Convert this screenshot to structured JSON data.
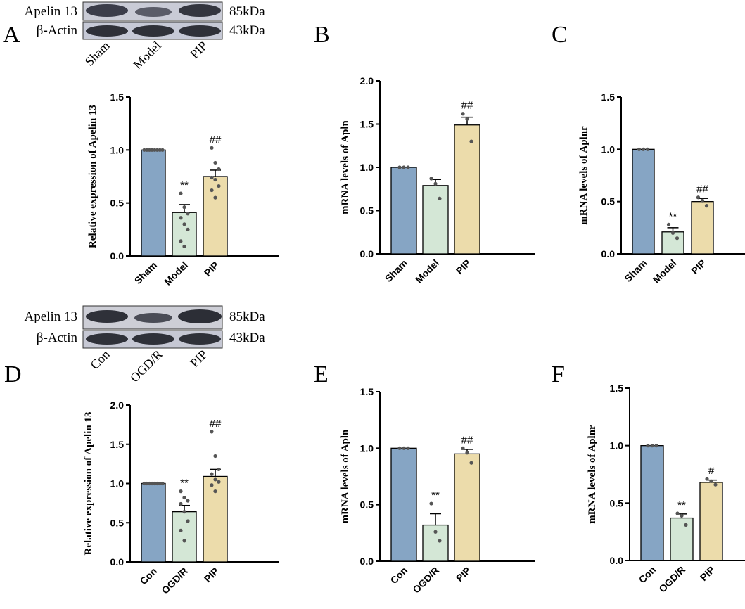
{
  "panels": {
    "A": "A",
    "B": "B",
    "C": "C",
    "D": "D",
    "E": "E",
    "F": "F"
  },
  "blots": [
    {
      "rows": [
        {
          "label": "Apelin 13",
          "size": "85kDa"
        },
        {
          "label": "β-Actin",
          "size": "43kDa"
        }
      ],
      "lanes": [
        "Sham",
        "Model",
        "PIP"
      ]
    },
    {
      "rows": [
        {
          "label": "Apelin 13",
          "size": "85kDa"
        },
        {
          "label": "β-Actin",
          "size": "43kDa"
        }
      ],
      "lanes": [
        "Con",
        "OGD/R",
        "PIP"
      ]
    }
  ],
  "colors": {
    "bar1": "#86a5c4",
    "bar2": "#d4e7d6",
    "bar3": "#ecdcab",
    "point": "#555555"
  },
  "chart_data": [
    {
      "panel": "A",
      "type": "bar",
      "categories": [
        "Sham",
        "Model",
        "PIP"
      ],
      "values": [
        1.0,
        0.41,
        0.75
      ],
      "errors": [
        0.0,
        0.075,
        0.06
      ],
      "points": [
        [
          1,
          1,
          1,
          1,
          1,
          1,
          1,
          1
        ],
        [
          0.59,
          0.46,
          0.4,
          0.36,
          0.3,
          0.25,
          0.14,
          0.09
        ],
        [
          1.02,
          0.88,
          0.82,
          0.74,
          0.72,
          0.66,
          0.62,
          0.55
        ]
      ],
      "significance": [
        "",
        "**",
        "##"
      ],
      "ylabel": "Relative expression of Apelin 13",
      "ylim": [
        0,
        1.5
      ],
      "ticks": [
        "0.0",
        "0.5",
        "1.0",
        "1.5"
      ],
      "tickvals": [
        0,
        0.5,
        1.0,
        1.5
      ]
    },
    {
      "panel": "B",
      "type": "bar",
      "categories": [
        "Sham",
        "Model",
        "PIP"
      ],
      "values": [
        1.0,
        0.79,
        1.49
      ],
      "errors": [
        0.0,
        0.07,
        0.09
      ],
      "points": [
        [
          1,
          1,
          1
        ],
        [
          0.87,
          0.81,
          0.64
        ],
        [
          1.62,
          1.56,
          1.3
        ]
      ],
      "significance": [
        "",
        "",
        "##"
      ],
      "ylabel": "mRNA levels of Apln",
      "ylim": [
        0,
        2.0
      ],
      "ticks": [
        "0.0",
        "0.5",
        "1.0",
        "1.5",
        "2.0"
      ],
      "tickvals": [
        0,
        0.5,
        1.0,
        1.5,
        2.0
      ]
    },
    {
      "panel": "C",
      "type": "bar",
      "categories": [
        "Sham",
        "Model",
        "PIP"
      ],
      "values": [
        1.0,
        0.21,
        0.5
      ],
      "errors": [
        0.0,
        0.04,
        0.03
      ],
      "points": [
        [
          1,
          1,
          1
        ],
        [
          0.28,
          0.2,
          0.15
        ],
        [
          0.54,
          0.51,
          0.46
        ]
      ],
      "significance": [
        "",
        "**",
        "##"
      ],
      "ylabel": "mRNA levels of Aplnr",
      "ylim": [
        0,
        1.5
      ],
      "ticks": [
        "0.0",
        "0.5",
        "1.0",
        "1.5"
      ],
      "tickvals": [
        0,
        0.5,
        1.0,
        1.5
      ]
    },
    {
      "panel": "D",
      "type": "bar",
      "categories": [
        "Con",
        "OGD/R",
        "PIP"
      ],
      "values": [
        1.0,
        0.64,
        1.09
      ],
      "errors": [
        0.0,
        0.08,
        0.09
      ],
      "points": [
        [
          1,
          1,
          1,
          1,
          1,
          1,
          1,
          1
        ],
        [
          0.9,
          0.82,
          0.78,
          0.74,
          0.64,
          0.52,
          0.4,
          0.27
        ],
        [
          1.66,
          1.35,
          1.18,
          1.12,
          1.05,
          1.02,
          0.98,
          0.9
        ]
      ],
      "significance": [
        "",
        "**",
        "##"
      ],
      "ylabel": "Relative expression of Apelin 13",
      "ylim": [
        0,
        2.0
      ],
      "ticks": [
        "0.0",
        "0.5",
        "1.0",
        "1.5",
        "2.0"
      ],
      "tickvals": [
        0,
        0.5,
        1.0,
        1.5,
        2.0
      ]
    },
    {
      "panel": "E",
      "type": "bar",
      "categories": [
        "Con",
        "OGD/R",
        "PIP"
      ],
      "values": [
        1.0,
        0.32,
        0.95
      ],
      "errors": [
        0.0,
        0.1,
        0.04
      ],
      "points": [
        [
          1,
          1,
          1
        ],
        [
          0.51,
          0.26,
          0.18
        ],
        [
          1.0,
          0.96,
          0.87
        ]
      ],
      "significance": [
        "",
        "**",
        "##"
      ],
      "ylabel": "mRNA levels of Apln",
      "ylim": [
        0,
        1.5
      ],
      "ticks": [
        "0.0",
        "0.5",
        "1.0",
        "1.5"
      ],
      "tickvals": [
        0,
        0.5,
        1.0,
        1.5
      ]
    },
    {
      "panel": "F",
      "type": "bar",
      "categories": [
        "Con",
        "OGD/R",
        "PIP"
      ],
      "values": [
        1.0,
        0.37,
        0.68
      ],
      "errors": [
        0.0,
        0.035,
        0.02
      ],
      "points": [
        [
          1,
          1,
          1
        ],
        [
          0.41,
          0.39,
          0.31
        ],
        [
          0.71,
          0.69,
          0.66
        ]
      ],
      "significance": [
        "",
        "**",
        "#"
      ],
      "ylabel": "mRNA levels of Aplnr",
      "ylim": [
        0,
        1.5
      ],
      "ticks": [
        "0.0",
        "0.5",
        "1.0",
        "1.5"
      ],
      "tickvals": [
        0,
        0.5,
        1.0,
        1.5
      ]
    }
  ]
}
